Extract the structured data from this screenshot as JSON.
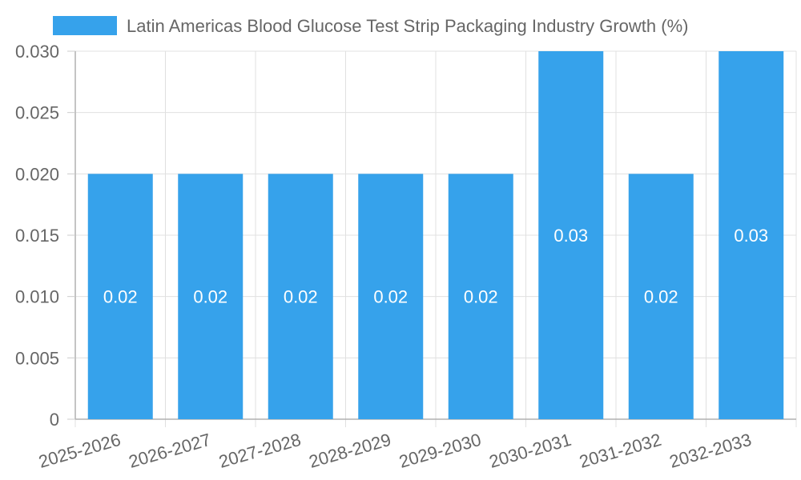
{
  "chart_data": {
    "type": "bar",
    "title": "",
    "xlabel": "",
    "ylabel": "",
    "categories": [
      "2025-2026",
      "2026-2027",
      "2027-2028",
      "2028-2029",
      "2029-2030",
      "2030-2031",
      "2031-2032",
      "2032-2033"
    ],
    "series": [
      {
        "name": "Latin Americas Blood Glucose Test Strip Packaging Industry Growth (%)",
        "values": [
          0.02,
          0.02,
          0.02,
          0.02,
          0.02,
          0.03,
          0.02,
          0.03
        ],
        "data_labels": [
          "0.02",
          "0.02",
          "0.02",
          "0.02",
          "0.02",
          "0.03",
          "0.02",
          "0.03"
        ],
        "color": "#36a2eb"
      }
    ],
    "ylim": [
      0,
      0.03
    ],
    "yticks": [
      "0",
      "0.005",
      "0.010",
      "0.015",
      "0.020",
      "0.025",
      "0.030"
    ],
    "grid": true,
    "legend_position": "top"
  }
}
